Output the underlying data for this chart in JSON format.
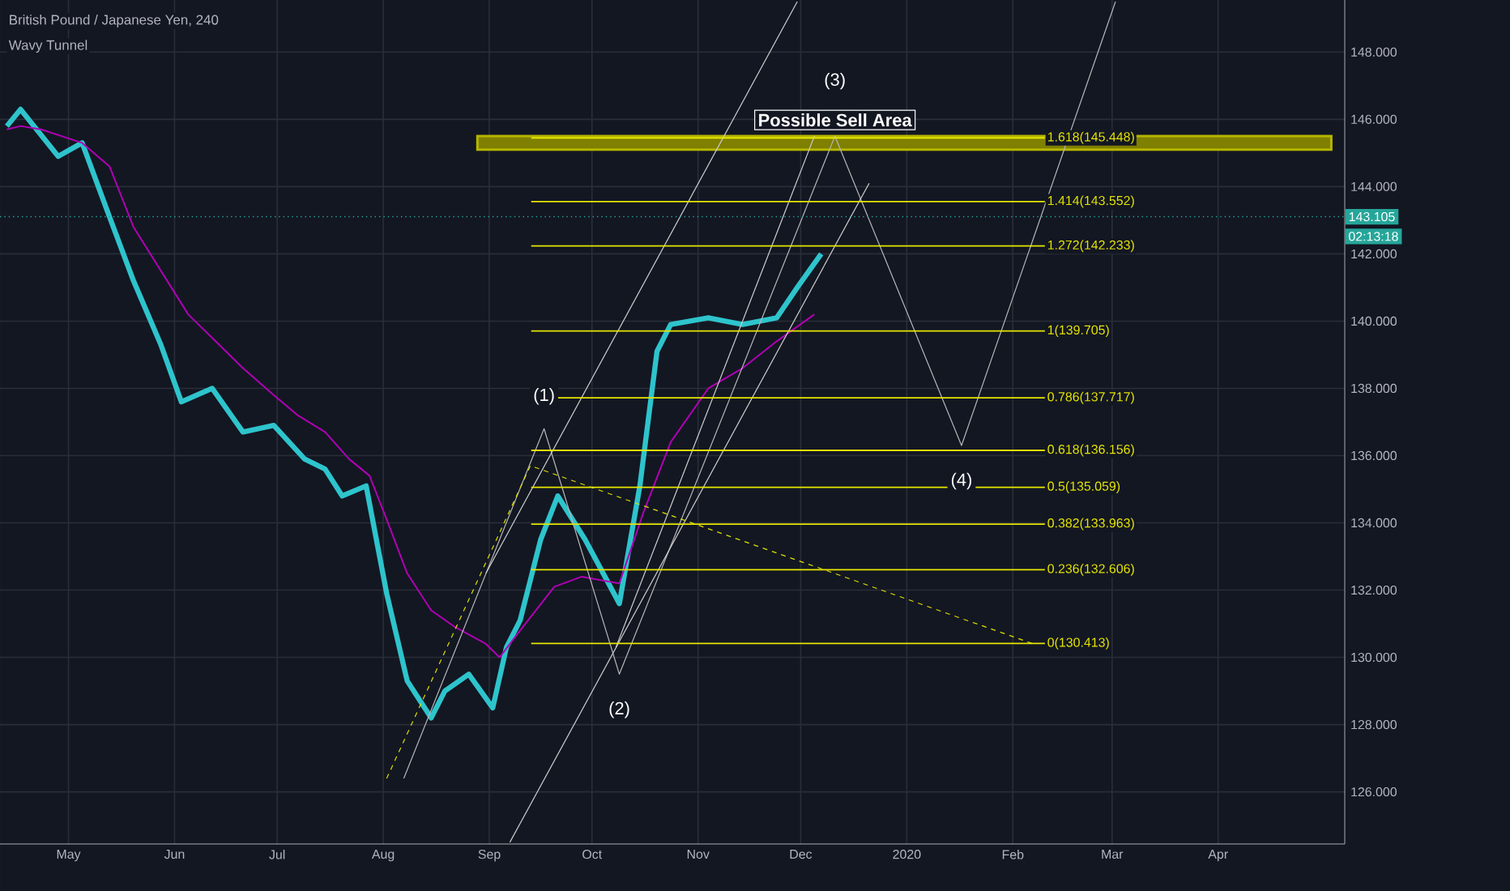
{
  "chart_data": {
    "type": "line",
    "title": "British Pound / Japanese Yen, 240",
    "subtitle": "Wavy Tunnel",
    "xlim": [
      "2019-04-11",
      "2020-05-08"
    ],
    "ylim": [
      124.45,
      149.55
    ],
    "xticks": [
      {
        "value": "2019-05-01",
        "label": "May"
      },
      {
        "value": "2019-06-01",
        "label": "Jun"
      },
      {
        "value": "2019-07-01",
        "label": "Jul"
      },
      {
        "value": "2019-08-01",
        "label": "Aug"
      },
      {
        "value": "2019-09-01",
        "label": "Sep"
      },
      {
        "value": "2019-10-01",
        "label": "Oct"
      },
      {
        "value": "2019-11-01",
        "label": "Nov"
      },
      {
        "value": "2019-12-01",
        "label": "Dec"
      },
      {
        "value": "2020-01-01",
        "label": "2020"
      },
      {
        "value": "2020-02-01",
        "label": "Feb"
      },
      {
        "value": "2020-03-01",
        "label": "Mar"
      },
      {
        "value": "2020-04-01",
        "label": "Apr"
      }
    ],
    "yticks": [
      {
        "value": 126,
        "label": "126.000"
      },
      {
        "value": 128,
        "label": "128.000"
      },
      {
        "value": 130,
        "label": "130.000"
      },
      {
        "value": 132,
        "label": "132.000"
      },
      {
        "value": 134,
        "label": "134.000"
      },
      {
        "value": 136,
        "label": "136.000"
      },
      {
        "value": 138,
        "label": "138.000"
      },
      {
        "value": 140,
        "label": "140.000"
      },
      {
        "value": 142,
        "label": "142.000"
      },
      {
        "value": 144,
        "label": "144.000"
      },
      {
        "value": 146,
        "label": "146.000"
      },
      {
        "value": 148,
        "label": "148.000"
      }
    ],
    "grid": true,
    "marker": "none",
    "series": [
      {
        "color": "#2ec4cc",
        "x": [
          "2019-04-13",
          "2019-04-17",
          "2019-04-28",
          "2019-05-05",
          "2019-05-13",
          "2019-05-20",
          "2019-05-28",
          "2019-06-03",
          "2019-06-12",
          "2019-06-21",
          "2019-06-30",
          "2019-07-09",
          "2019-07-15",
          "2019-07-20",
          "2019-07-27",
          "2019-08-02",
          "2019-08-08",
          "2019-08-15",
          "2019-08-19",
          "2019-08-26",
          "2019-09-02",
          "2019-09-06",
          "2019-09-10",
          "2019-09-16",
          "2019-09-21",
          "2019-09-29",
          "2019-10-09",
          "2019-10-15",
          "2019-10-20",
          "2019-10-24",
          "2019-11-04",
          "2019-11-14",
          "2019-11-24",
          "2019-11-30",
          "2019-12-07"
        ],
        "values": [
          145.8,
          146.3,
          144.9,
          145.3,
          143.1,
          141.2,
          139.3,
          137.6,
          138.0,
          136.7,
          136.9,
          135.9,
          135.6,
          134.8,
          135.1,
          131.9,
          129.3,
          128.2,
          129.0,
          129.5,
          128.5,
          130.3,
          131.1,
          133.5,
          134.8,
          133.5,
          131.6,
          135.1,
          139.1,
          139.9,
          140.1,
          139.9,
          140.1,
          141.0,
          142.0
        ]
      },
      {
        "color": "#b000b5",
        "x": [
          "2019-04-13",
          "2019-04-17",
          "2019-04-23",
          "2019-05-05",
          "2019-05-13",
          "2019-05-20",
          "2019-05-28",
          "2019-06-05",
          "2019-06-13",
          "2019-06-21",
          "2019-06-30",
          "2019-07-07",
          "2019-07-15",
          "2019-07-22",
          "2019-07-28",
          "2019-08-02",
          "2019-08-08",
          "2019-08-15",
          "2019-08-22",
          "2019-08-31",
          "2019-09-04",
          "2019-09-10",
          "2019-09-20",
          "2019-09-28",
          "2019-10-09",
          "2019-10-16",
          "2019-10-24",
          "2019-11-04",
          "2019-11-14",
          "2019-11-24",
          "2019-12-05"
        ],
        "values": [
          145.7,
          145.8,
          145.7,
          145.3,
          144.6,
          142.8,
          141.5,
          140.2,
          139.4,
          138.6,
          137.8,
          137.2,
          136.7,
          135.9,
          135.4,
          134.1,
          132.5,
          131.4,
          130.9,
          130.4,
          130.0,
          130.8,
          132.1,
          132.4,
          132.2,
          134.3,
          136.4,
          138.0,
          138.6,
          139.4,
          140.2
        ]
      },
      {
        "color": "#b8b8b8",
        "x": [
          "2019-08-07",
          "2019-09-17",
          "2019-10-09",
          "2019-12-11",
          "2020-01-17",
          "2020-03-02"
        ],
        "values": [
          126.4,
          136.8,
          129.5,
          145.5,
          136.3,
          149.5
        ]
      },
      {
        "color": "#d0d0d0",
        "x": [
          "2019-09-07",
          "2019-12-21"
        ],
        "values": [
          124.5,
          144.1
        ]
      },
      {
        "color": "#d0d0d0",
        "x": [
          "2019-08-31",
          "2019-11-30"
        ],
        "values": [
          132.5,
          149.5
        ]
      },
      {
        "color": "#d0d0d0",
        "x": [
          "2019-10-08",
          "2019-12-05"
        ],
        "values": [
          130.3,
          145.5
        ]
      },
      {
        "color": "#e0e000",
        "line_style": "dashed",
        "x": [
          "2019-08-02",
          "2019-09-13",
          "2020-02-07"
        ],
        "values": [
          126.4,
          135.7,
          130.4
        ]
      }
    ],
    "bands": [
      {
        "axis": "y",
        "from": 145.1,
        "to": 145.5,
        "color": "#b5b500"
      }
    ],
    "ref_lines": [
      {
        "axis": "y",
        "value": 145.448,
        "label": "1.618(145.448)",
        "color": "#e6e600"
      },
      {
        "axis": "y",
        "value": 143.552,
        "label": "1.414(143.552)",
        "color": "#e6e600"
      },
      {
        "axis": "y",
        "value": 142.233,
        "label": "1.272(142.233)",
        "color": "#e6e600"
      },
      {
        "axis": "y",
        "value": 139.705,
        "label": "1(139.705)",
        "color": "#e6e600"
      },
      {
        "axis": "y",
        "value": 137.717,
        "label": "0.786(137.717)",
        "color": "#e6e600"
      },
      {
        "axis": "y",
        "value": 136.156,
        "label": "0.618(136.156)",
        "color": "#e6e600"
      },
      {
        "axis": "y",
        "value": 135.059,
        "label": "0.5(135.059)",
        "color": "#e6e600"
      },
      {
        "axis": "y",
        "value": 133.963,
        "label": "0.382(133.963)",
        "color": "#e6e600"
      },
      {
        "axis": "y",
        "value": 132.606,
        "label": "0.236(132.606)",
        "color": "#e6e600"
      },
      {
        "axis": "y",
        "value": 130.413,
        "label": "0(130.413)",
        "color": "#e6e600"
      },
      {
        "axis": "y",
        "value": 143.105,
        "label": "143.105",
        "color": "#26a69a",
        "line_style": "dotted"
      }
    ],
    "annotations": [
      {
        "text": "(1)",
        "x": "2019-09-17",
        "y": 136.8
      },
      {
        "text": "(2)",
        "x": "2019-10-09",
        "y": 129.5
      },
      {
        "text": "(3)",
        "x": "2019-12-11",
        "y": 145.5
      },
      {
        "text": "(4)",
        "x": "2020-01-17",
        "y": 136.3
      },
      {
        "text": "Possible Sell Area",
        "x": "2019-12-11",
        "y": 145.5
      },
      "02:13:18"
    ]
  }
}
